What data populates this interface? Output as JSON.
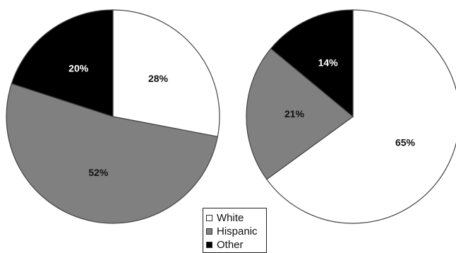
{
  "chart_data": [
    {
      "type": "pie",
      "categories": [
        "White",
        "Hispanic",
        "Other"
      ],
      "values": [
        28,
        52,
        20
      ],
      "labels": [
        "28%",
        "52%",
        "20%"
      ]
    },
    {
      "type": "pie",
      "categories": [
        "White",
        "Hispanic",
        "Other"
      ],
      "values": [
        65,
        21,
        14
      ],
      "labels": [
        "65%",
        "21%",
        "14%"
      ]
    }
  ],
  "legend": {
    "items": [
      {
        "label": "White",
        "color": "#ffffff"
      },
      {
        "label": "Hispanic",
        "color": "#808080"
      },
      {
        "label": "Other",
        "color": "#000000"
      }
    ]
  },
  "colors": {
    "White": "#ffffff",
    "Hispanic": "#808080",
    "Other": "#000000",
    "label_on_light": "#111111",
    "label_on_dark": "#ffffff"
  }
}
